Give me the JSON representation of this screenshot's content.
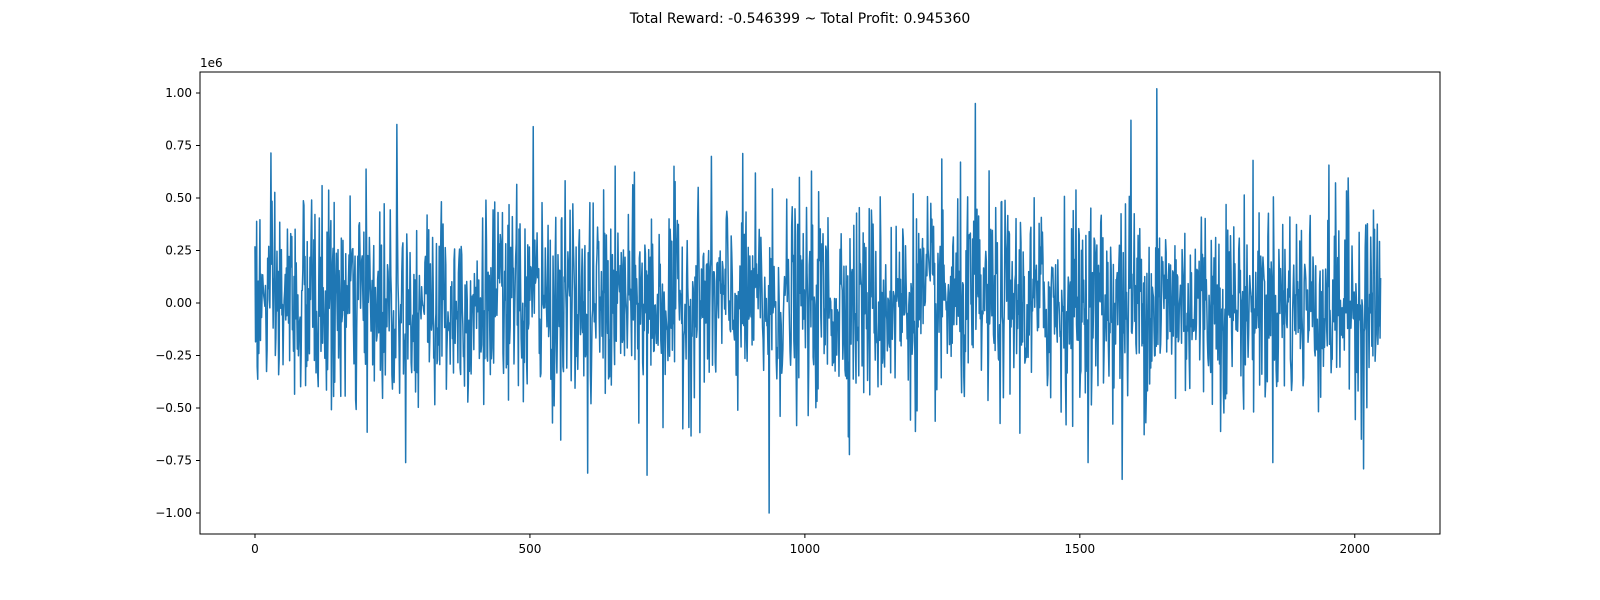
{
  "chart_data": {
    "type": "line",
    "title": "Total Reward: -0.546399 ~ Total Profit: 0.945360",
    "xlabel": "",
    "ylabel": "",
    "y_offset_label": "1e6",
    "xlim": [
      -100,
      2155
    ],
    "ylim": [
      -1.1,
      1.1
    ],
    "x_ticks": [
      0,
      500,
      1000,
      1500,
      2000
    ],
    "x_tick_labels": [
      "0",
      "500",
      "1000",
      "1500",
      "2000"
    ],
    "y_ticks": [
      -1.0,
      -0.75,
      -0.5,
      -0.25,
      0.0,
      0.25,
      0.5,
      0.75,
      1.0
    ],
    "y_tick_labels": [
      "−1.00",
      "−0.75",
      "−0.50",
      "−0.25",
      "0.00",
      "0.25",
      "0.50",
      "0.75",
      "1.00"
    ],
    "grid": false,
    "legend": "none",
    "series_color": "#1f77b4",
    "series": [
      {
        "n_points": 2048,
        "x_start": 0,
        "x_end": 2047,
        "y_min": -1.0,
        "y_max": 1.02,
        "typical_range": [
          -0.5,
          0.5
        ],
        "notable_points": [
          {
            "x": 258,
            "y": 0.85
          },
          {
            "x": 506,
            "y": 0.84
          },
          {
            "x": 605,
            "y": -0.81
          },
          {
            "x": 713,
            "y": -0.82
          },
          {
            "x": 935,
            "y": -1.0
          },
          {
            "x": 1310,
            "y": 0.95
          },
          {
            "x": 1577,
            "y": -0.84
          },
          {
            "x": 1593,
            "y": 0.87
          },
          {
            "x": 1640,
            "y": 1.02
          },
          {
            "x": 2016,
            "y": -0.79
          }
        ]
      }
    ]
  }
}
